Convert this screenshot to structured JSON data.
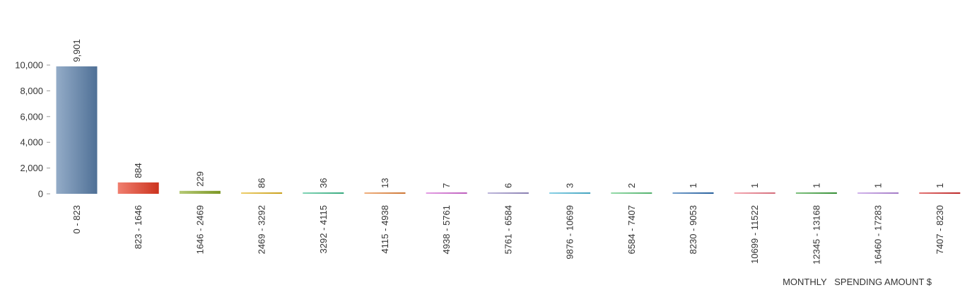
{
  "chart_data": {
    "type": "bar",
    "xlabel": "MONTHLY   SPENDING AMOUNT $",
    "ylabel": "",
    "ylim": [
      0,
      10000
    ],
    "yticks": [
      0,
      2000,
      4000,
      6000,
      8000,
      10000
    ],
    "ytick_labels": [
      "0",
      "2,000",
      "4,000",
      "6,000",
      "8,000",
      "10,000"
    ],
    "grid": false,
    "legend": "none",
    "categories": [
      "0  -  823",
      "823  -  1646",
      "1646  -  2469",
      "2469  -  3292",
      "3292  -  4115",
      "4115  -  4938",
      "4938  -  5761",
      "5761  -  6584",
      "9876  -  10699",
      "6584  -  7407",
      "8230  -  9053",
      "10699  -  11522",
      "12345  -  13168",
      "16460  -  17283",
      "7407  -  8230"
    ],
    "values": [
      9901,
      884,
      229,
      86,
      36,
      13,
      7,
      6,
      3,
      2,
      1,
      1,
      1,
      1,
      1
    ],
    "value_labels": [
      "9,901",
      "884",
      "229",
      "86",
      "36",
      "13",
      "7",
      "6",
      "3",
      "2",
      "1",
      "1",
      "1",
      "1",
      "1"
    ],
    "colors": [
      "#5a7fab",
      "#e83a22",
      "#8dac2a",
      "#e3b31c",
      "#3dbf8e",
      "#e8853a",
      "#d66ad6",
      "#9a8fc8",
      "#4ab8d8",
      "#5cc87a",
      "#2a6bb0",
      "#f07a8a",
      "#3aa03a",
      "#b88ae0",
      "#d42a2a"
    ]
  }
}
